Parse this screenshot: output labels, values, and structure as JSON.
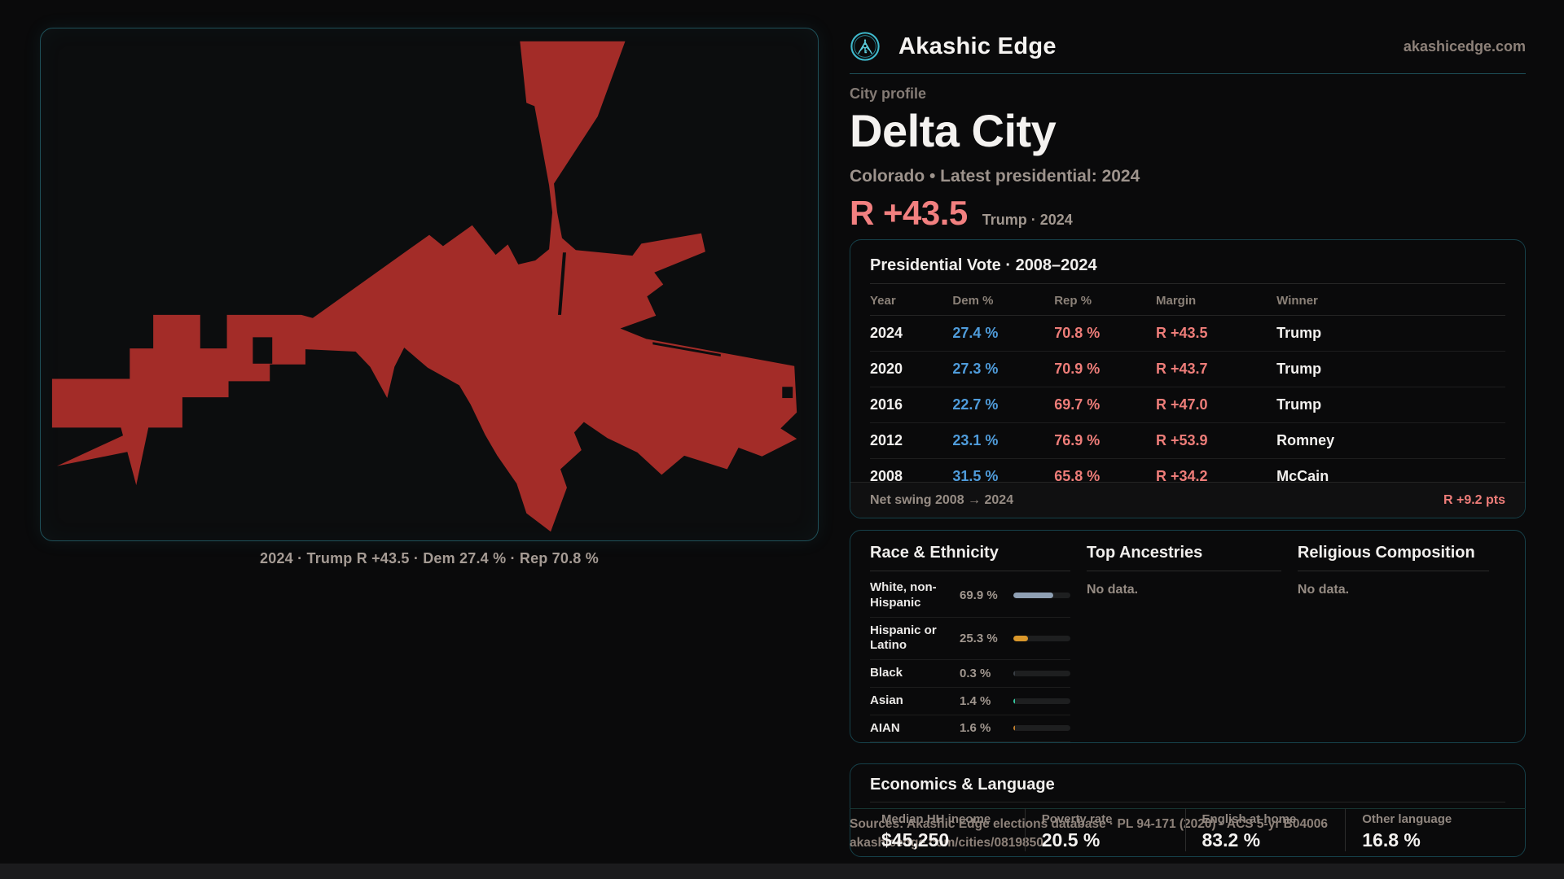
{
  "site": {
    "brand": "Akashic Edge",
    "domain": "akashicedge.com"
  },
  "header": {
    "kicker": "City profile",
    "title": "Delta City",
    "subtitle": "Colorado • Latest presidential: 2024",
    "margin_big": "R +43.5",
    "margin_note": "Trump · 2024"
  },
  "map": {
    "caption": "2024 · Trump R +43.5 · Dem 27.4 % · Rep 70.8 %"
  },
  "presidential": {
    "title": "Presidential Vote · 2008–2024",
    "columns": [
      "Year",
      "Dem %",
      "Rep %",
      "Margin",
      "Winner"
    ],
    "rows": [
      [
        "2024",
        "27.4 %",
        "70.8 %",
        "R +43.5",
        "Trump"
      ],
      [
        "2020",
        "27.3 %",
        "70.9 %",
        "R +43.7",
        "Trump"
      ],
      [
        "2016",
        "22.7 %",
        "69.7 %",
        "R +47.0",
        "Trump"
      ],
      [
        "2012",
        "23.1 %",
        "76.9 %",
        "R +53.9",
        "Romney"
      ],
      [
        "2008",
        "31.5 %",
        "65.8 %",
        "R +34.2",
        "McCain"
      ]
    ],
    "net_swing_label": "Net swing 2008 → 2024",
    "net_swing_value": "R +9.2 pts"
  },
  "race": {
    "title": "Race & Ethnicity",
    "rows": [
      {
        "label": "White, non-Hispanic",
        "value": "69.9 %",
        "pct": 69.9,
        "color": "#8fa0b4"
      },
      {
        "label": "Hispanic or Latino",
        "value": "25.3 %",
        "pct": 25.3,
        "color": "#d9972b"
      },
      {
        "label": "Black",
        "value": "0.3 %",
        "pct": 0.3,
        "color": "#3a3f45"
      },
      {
        "label": "Asian",
        "value": "1.4 %",
        "pct": 1.4,
        "color": "#35c79e"
      },
      {
        "label": "AIAN",
        "value": "1.6 %",
        "pct": 1.6,
        "color": "#c07f2e"
      }
    ]
  },
  "ancestries": {
    "title": "Top Ancestries",
    "empty": "No data."
  },
  "religion": {
    "title": "Religious Composition",
    "empty": "No data."
  },
  "economics": {
    "title": "Economics & Language",
    "stats": [
      {
        "label": "Median HH income",
        "value": "$45,250"
      },
      {
        "label": "Poverty rate",
        "value": "20.5 %"
      },
      {
        "label": "English at home",
        "value": "83.2 %"
      },
      {
        "label": "Other language",
        "value": "16.8 %"
      }
    ]
  },
  "footer": {
    "line1": "Sources: Akashic Edge elections database · PL 94-171 (2020) · ACS 5-yr B04006",
    "line2": "akashicedge.com/cities/0819850"
  },
  "colors": {
    "city_fill": "#a32c28",
    "dem_blue": "#4f9cdb",
    "rep_red": "#ee7d79",
    "accent_teal": "#3fb9cc",
    "page_bg": "#0a0a0b"
  }
}
